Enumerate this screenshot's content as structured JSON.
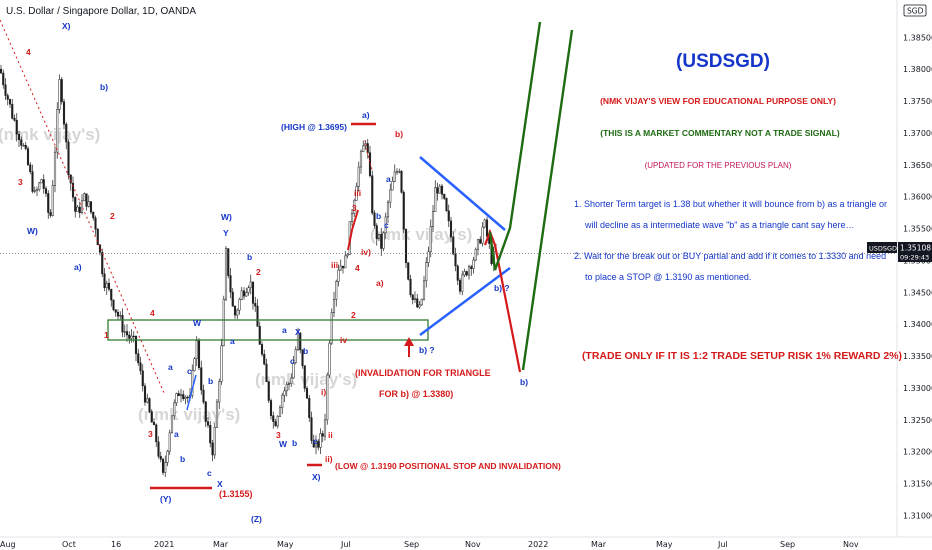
{
  "header": {
    "symbol_title": "U.S. Dollar / Singapore Dollar, 1D, OANDA",
    "axis_badge": "SGD"
  },
  "price_tag": {
    "symbol": "USDSGD",
    "price": "1.35108",
    "countdown": "09:29:43"
  },
  "watermark": "(nmk vijay's)",
  "notes": {
    "title": "(USDSGD)",
    "view": "(NMK VIJAY'S VIEW FOR EDUCATIONAL PURPOSE ONLY)",
    "commentary": "(THIS IS A MARKET COMMENTARY NOT A TRADE SIGNAL)",
    "updated": "(UPDATED FOR THE PREVIOUS PLAN)",
    "point1_line1": "1. Shorter Term target is 1.38 but whether it will bounce from b) as a triangle or",
    "point1_line2": "will decline as a intermediate wave \"b\" as a triangle cant say here…",
    "point2_line1": "2. Wait for the break out or BUY partial and add if it comes to 1.3330 and need",
    "point2_line2": "to place a STOP @ 1.3190 as mentioned.",
    "risk": "(TRADE ONLY IF IT IS 1:2 TRADE SETUP RISK 1% REWARD 2%)",
    "high": "(HIGH @ 1.3695)",
    "invalidation_line1": "(INVALIDATION FOR TRIANGLE",
    "invalidation_line2": "FOR b) @ 1.3380)",
    "low": "(LOW @ 1.3190 POSITIONAL STOP AND INVALIDATION)",
    "low_level": "(1.3155)"
  },
  "colors": {
    "bull": "#1e1e1e",
    "bear": "#1e1e1e",
    "blue": "#2962ff",
    "wave_blue": "#1536c8",
    "red": "#d41a1a",
    "green": "#1e6b12",
    "teal_zone": "#2f7d32",
    "magenta": "#c2185b"
  },
  "chart_data": {
    "type": "candlestick",
    "title": "U.S. Dollar / Singapore Dollar, 1D, OANDA",
    "x_tick_labels": [
      "Aug",
      "Oct",
      "16",
      "2021",
      "Mar",
      "May",
      "Jul",
      "Sep",
      "Nov",
      "2022",
      "Mar",
      "May",
      "Jul",
      "Sep",
      "Nov"
    ],
    "y_tick_labels": [
      "1.38500",
      "1.38000",
      "1.37500",
      "1.37000",
      "1.36500",
      "1.36000",
      "1.35500",
      "1.35000",
      "1.34500",
      "1.34000",
      "1.33500",
      "1.33000",
      "1.32500",
      "1.32000",
      "1.31500",
      "1.31000"
    ],
    "ylim": [
      1.3085,
      1.3885
    ],
    "last_price": 1.35108,
    "price_path": [
      [
        0,
        1.38
      ],
      [
        12,
        1.373
      ],
      [
        25,
        1.367
      ],
      [
        35,
        1.36
      ],
      [
        42,
        1.363
      ],
      [
        50,
        1.356
      ],
      [
        60,
        1.379
      ],
      [
        68,
        1.365
      ],
      [
        76,
        1.357
      ],
      [
        85,
        1.36
      ],
      [
        95,
        1.356
      ],
      [
        104,
        1.347
      ],
      [
        114,
        1.343
      ],
      [
        124,
        1.339
      ],
      [
        134,
        1.337
      ],
      [
        146,
        1.328
      ],
      [
        156,
        1.322
      ],
      [
        163,
        1.316
      ],
      [
        172,
        1.326
      ],
      [
        180,
        1.33
      ],
      [
        190,
        1.328
      ],
      [
        196,
        1.338
      ],
      [
        205,
        1.325
      ],
      [
        213,
        1.32
      ],
      [
        222,
        1.337
      ],
      [
        226,
        1.351
      ],
      [
        234,
        1.341
      ],
      [
        242,
        1.345
      ],
      [
        250,
        1.347
      ],
      [
        258,
        1.339
      ],
      [
        266,
        1.331
      ],
      [
        274,
        1.324
      ],
      [
        282,
        1.329
      ],
      [
        290,
        1.331
      ],
      [
        298,
        1.338
      ],
      [
        306,
        1.329
      ],
      [
        314,
        1.32
      ],
      [
        324,
        1.323
      ],
      [
        331,
        1.342
      ],
      [
        338,
        1.349
      ],
      [
        346,
        1.35
      ],
      [
        352,
        1.358
      ],
      [
        358,
        1.364
      ],
      [
        366,
        1.3695
      ],
      [
        374,
        1.355
      ],
      [
        382,
        1.352
      ],
      [
        388,
        1.359
      ],
      [
        394,
        1.363
      ],
      [
        400,
        1.365
      ],
      [
        406,
        1.35
      ],
      [
        412,
        1.344
      ],
      [
        420,
        1.342
      ],
      [
        428,
        1.351
      ],
      [
        436,
        1.362
      ],
      [
        444,
        1.359
      ],
      [
        452,
        1.353
      ],
      [
        460,
        1.346
      ],
      [
        468,
        1.349
      ],
      [
        476,
        1.351
      ],
      [
        484,
        1.356
      ],
      [
        492,
        1.35
      ],
      [
        496,
        1.3511
      ]
    ],
    "annotations": {
      "high": 1.3695,
      "low": 1.319,
      "triangle_invalidation": 1.338,
      "stop": 1.319,
      "target": 1.38,
      "partial_buy": 1.333,
      "swing_low": 1.3155
    }
  }
}
